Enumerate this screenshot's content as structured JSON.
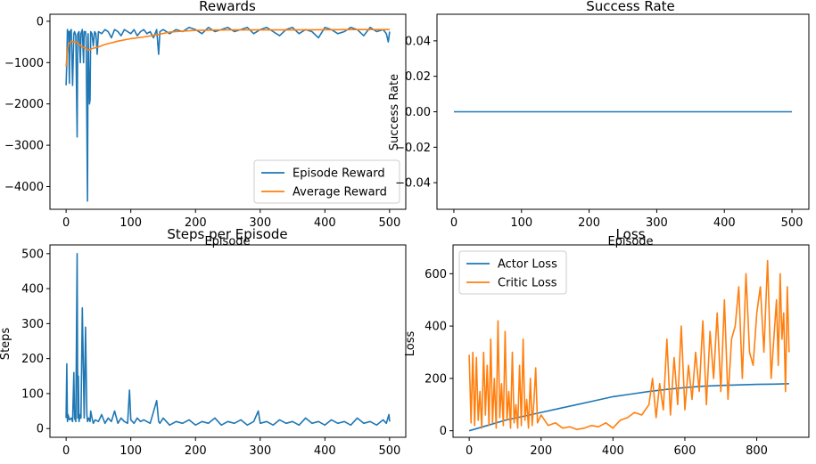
{
  "colors": {
    "series_blue": "#1f77b4",
    "series_orange": "#ff7f0e",
    "axes": "#000000",
    "background": "#ffffff",
    "legend_border": "#cccccc"
  },
  "chart_data": [
    {
      "id": "rewards",
      "type": "line",
      "title": "Rewards",
      "xlabel": "Episode",
      "ylabel": "",
      "xlim": [
        -25,
        525
      ],
      "ylim": [
        -4550,
        170
      ],
      "xticks": [
        0,
        100,
        200,
        300,
        400,
        500
      ],
      "yticks": [
        0,
        -1000,
        -2000,
        -3000,
        -4000
      ],
      "ytick_labels": [
        "0",
        "−1000",
        "−2000",
        "−3000",
        "−4000"
      ],
      "legend": "lower-right",
      "series": [
        {
          "name": "Episode Reward",
          "color": "#1f77b4",
          "x": [
            0,
            1,
            2,
            3,
            4,
            5,
            6,
            8,
            10,
            12,
            13,
            15,
            17,
            18,
            20,
            22,
            23,
            25,
            27,
            28,
            30,
            31,
            33,
            34,
            36,
            37,
            38,
            40,
            42,
            44,
            46,
            48,
            50,
            55,
            60,
            65,
            70,
            75,
            80,
            85,
            90,
            95,
            100,
            105,
            110,
            115,
            120,
            125,
            130,
            135,
            140,
            143,
            145,
            150,
            160,
            170,
            180,
            190,
            200,
            210,
            220,
            230,
            240,
            250,
            260,
            270,
            280,
            290,
            300,
            310,
            320,
            330,
            340,
            350,
            360,
            370,
            380,
            390,
            400,
            410,
            420,
            430,
            440,
            450,
            460,
            470,
            480,
            490,
            495,
            498,
            500
          ],
          "y": [
            -1550,
            -1000,
            -200,
            -300,
            -250,
            -1500,
            -250,
            -200,
            -1550,
            -300,
            -250,
            -350,
            -2800,
            -300,
            -250,
            -1000,
            -300,
            -200,
            -1000,
            -250,
            -250,
            -400,
            -4350,
            -300,
            -2000,
            -1900,
            -250,
            -300,
            -600,
            -250,
            -300,
            -800,
            -250,
            -300,
            -200,
            -250,
            -400,
            -200,
            -250,
            -350,
            -200,
            -250,
            -300,
            -200,
            -350,
            -250,
            -200,
            -300,
            -250,
            -400,
            -200,
            -800,
            -250,
            -200,
            -300,
            -200,
            -250,
            -150,
            -200,
            -300,
            -150,
            -250,
            -200,
            -150,
            -250,
            -200,
            -150,
            -300,
            -200,
            -150,
            -250,
            -350,
            -200,
            -150,
            -300,
            -200,
            -250,
            -400,
            -150,
            -200,
            -300,
            -250,
            -150,
            -200,
            -350,
            -150,
            -250,
            -200,
            -300,
            -500,
            -250
          ]
        },
        {
          "name": "Average Reward",
          "color": "#ff7f0e",
          "x": [
            0,
            2,
            4,
            6,
            8,
            12,
            16,
            20,
            25,
            30,
            35,
            40,
            50,
            60,
            80,
            100,
            120,
            140,
            160,
            200,
            250,
            300,
            350,
            400,
            450,
            500
          ],
          "y": [
            -1100,
            -700,
            -550,
            -520,
            -480,
            -500,
            -500,
            -560,
            -620,
            -650,
            -700,
            -660,
            -620,
            -560,
            -480,
            -420,
            -380,
            -330,
            -260,
            -220,
            -210,
            -210,
            -210,
            -205,
            -200,
            -200
          ]
        }
      ]
    },
    {
      "id": "success-rate",
      "type": "line",
      "title": "Success Rate",
      "xlabel": "Episode",
      "ylabel": "Success Rate",
      "xlim": [
        -25,
        525
      ],
      "ylim": [
        -0.055,
        0.055
      ],
      "xticks": [
        0,
        100,
        200,
        300,
        400,
        500
      ],
      "yticks": [
        0.04,
        0.02,
        0.0,
        -0.02,
        -0.04
      ],
      "ytick_labels": [
        "0.04",
        "0.02",
        "0.00",
        "−0.02",
        "−0.04"
      ],
      "series": [
        {
          "color": "#1f77b4",
          "x": [
            0,
            500
          ],
          "y": [
            0,
            0
          ]
        }
      ]
    },
    {
      "id": "steps",
      "type": "line",
      "title": "Steps per Episode",
      "xlabel": "",
      "ylabel": "Steps",
      "xlim": [
        -25,
        525
      ],
      "ylim": [
        -25,
        525
      ],
      "xticks": [
        0,
        100,
        200,
        300,
        400,
        500
      ],
      "yticks": [
        0,
        100,
        200,
        300,
        400,
        500
      ],
      "ytick_labels": [
        "0",
        "100",
        "200",
        "300",
        "400",
        "500"
      ],
      "series": [
        {
          "color": "#1f77b4",
          "x": [
            0,
            1,
            2,
            3,
            5,
            8,
            10,
            12,
            13,
            15,
            17,
            18,
            19,
            20,
            22,
            23,
            25,
            28,
            30,
            32,
            33,
            35,
            37,
            38,
            40,
            42,
            45,
            50,
            55,
            60,
            65,
            70,
            75,
            80,
            85,
            90,
            95,
            98,
            100,
            105,
            110,
            115,
            120,
            130,
            140,
            143,
            145,
            150,
            160,
            170,
            180,
            190,
            200,
            210,
            220,
            230,
            240,
            250,
            260,
            270,
            280,
            290,
            297,
            300,
            310,
            320,
            330,
            340,
            350,
            360,
            370,
            380,
            390,
            400,
            410,
            420,
            430,
            440,
            450,
            460,
            470,
            480,
            490,
            495,
            499,
            500
          ],
          "y": [
            30,
            185,
            20,
            40,
            25,
            30,
            20,
            160,
            30,
            20,
            500,
            30,
            150,
            20,
            40,
            30,
            345,
            30,
            290,
            40,
            20,
            30,
            20,
            50,
            30,
            15,
            25,
            20,
            40,
            15,
            30,
            20,
            50,
            15,
            30,
            20,
            15,
            110,
            25,
            15,
            30,
            20,
            25,
            15,
            80,
            20,
            15,
            30,
            10,
            20,
            15,
            25,
            10,
            20,
            15,
            30,
            10,
            20,
            15,
            25,
            10,
            20,
            50,
            15,
            20,
            10,
            25,
            15,
            20,
            10,
            30,
            15,
            20,
            10,
            25,
            15,
            20,
            10,
            30,
            15,
            20,
            10,
            25,
            15,
            40,
            20
          ]
        }
      ]
    },
    {
      "id": "loss",
      "type": "line",
      "title": "Loss",
      "xlabel": "",
      "ylabel": "Loss",
      "xlim": [
        -45,
        945
      ],
      "ylim": [
        -25,
        710
      ],
      "xticks": [
        0,
        200,
        400,
        600,
        800
      ],
      "yticks": [
        0,
        200,
        400,
        600
      ],
      "ytick_labels": [
        "0",
        "200",
        "400",
        "600"
      ],
      "legend": "upper-left",
      "series": [
        {
          "name": "Actor Loss",
          "color": "#1f77b4",
          "x": [
            0,
            50,
            100,
            150,
            200,
            250,
            300,
            350,
            400,
            450,
            500,
            550,
            600,
            650,
            700,
            750,
            800,
            850,
            890
          ],
          "y": [
            0,
            20,
            40,
            55,
            70,
            85,
            100,
            115,
            130,
            140,
            150,
            158,
            165,
            170,
            173,
            175,
            177,
            178,
            180
          ]
        },
        {
          "name": "Critic Loss",
          "color": "#ff7f0e",
          "x": [
            0,
            5,
            10,
            15,
            20,
            25,
            30,
            35,
            40,
            45,
            50,
            55,
            60,
            65,
            70,
            75,
            80,
            85,
            90,
            95,
            100,
            105,
            110,
            115,
            120,
            125,
            130,
            135,
            140,
            145,
            150,
            155,
            160,
            165,
            170,
            175,
            180,
            185,
            190,
            200,
            220,
            240,
            260,
            280,
            300,
            320,
            340,
            360,
            380,
            400,
            420,
            440,
            460,
            480,
            500,
            510,
            520,
            530,
            540,
            550,
            560,
            570,
            580,
            590,
            600,
            610,
            620,
            630,
            640,
            650,
            660,
            670,
            680,
            690,
            700,
            710,
            720,
            730,
            740,
            750,
            760,
            770,
            780,
            790,
            800,
            810,
            820,
            830,
            840,
            850,
            855,
            860,
            865,
            870,
            875,
            880,
            885,
            890
          ],
          "y": [
            290,
            30,
            300,
            20,
            280,
            40,
            150,
            10,
            300,
            60,
            250,
            20,
            350,
            30,
            200,
            10,
            420,
            50,
            180,
            20,
            380,
            40,
            150,
            10,
            300,
            30,
            100,
            10,
            250,
            20,
            350,
            40,
            120,
            10,
            200,
            20,
            110,
            240,
            30,
            60,
            20,
            30,
            10,
            15,
            5,
            10,
            20,
            15,
            30,
            10,
            40,
            50,
            70,
            60,
            100,
            200,
            50,
            180,
            80,
            350,
            60,
            280,
            100,
            400,
            80,
            250,
            120,
            300,
            150,
            420,
            100,
            380,
            200,
            450,
            150,
            500,
            120,
            350,
            400,
            550,
            200,
            600,
            300,
            250,
            450,
            550,
            300,
            650,
            200,
            400,
            500,
            250,
            600,
            350,
            450,
            150,
            550,
            300
          ]
        }
      ]
    }
  ]
}
